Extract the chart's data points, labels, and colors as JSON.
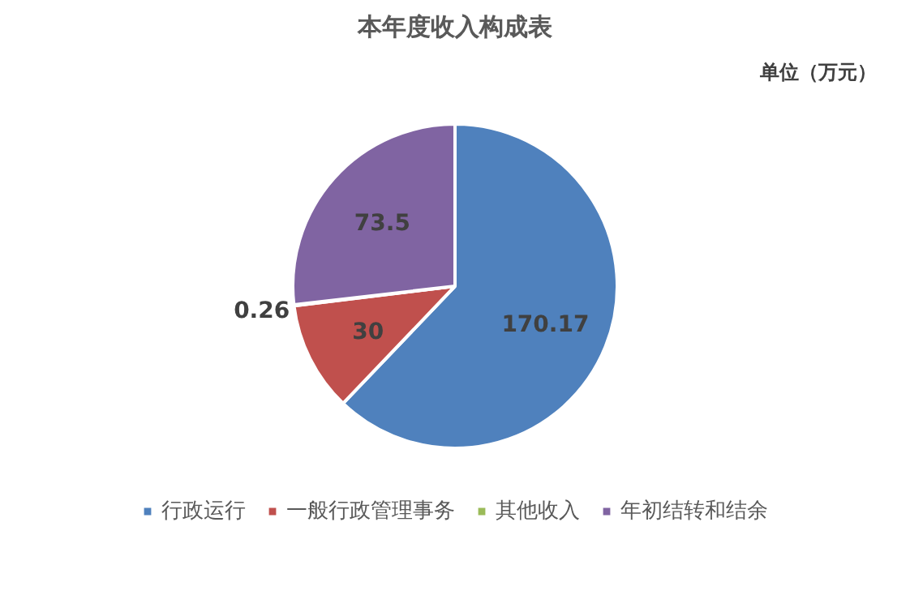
{
  "chart_data": {
    "type": "pie",
    "title": "本年度收入构成表",
    "annotations": [
      "单位（万元）"
    ],
    "categories": [
      "行政运行",
      "一般行政管理事务",
      "其他收入",
      "年初结转和结余"
    ],
    "values": [
      170.17,
      30,
      0.26,
      73.5
    ],
    "colors": [
      "#4f81bd",
      "#c0504d",
      "#9bbb59",
      "#8064a2"
    ],
    "data_labels": true,
    "legend": "bottom"
  }
}
